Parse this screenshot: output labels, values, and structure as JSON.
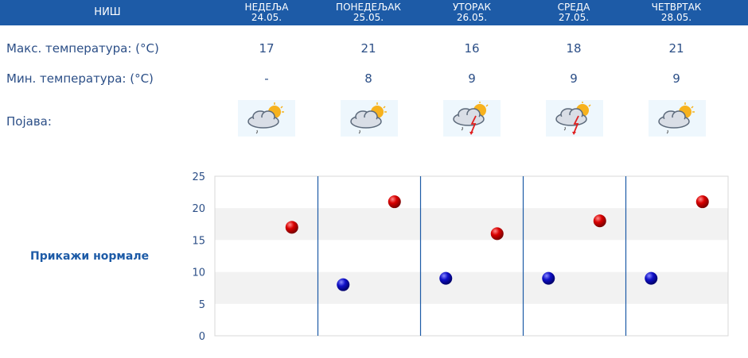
{
  "header": {
    "city": "НИШ",
    "days": [
      {
        "name": "НЕДЕЉА",
        "date": "24.05."
      },
      {
        "name": "ПОНЕДЕЉАК",
        "date": "25.05."
      },
      {
        "name": "УТОРАК",
        "date": "26.05."
      },
      {
        "name": "СРЕДА",
        "date": "27.05."
      },
      {
        "name": "ЧЕТВРТАК",
        "date": "28.05."
      }
    ]
  },
  "rows": {
    "max_label": "Макс. температура: (°C)",
    "min_label": "Мин. температура: (°C)",
    "phenomenon_label": "Појава:",
    "max_values": [
      "17",
      "21",
      "16",
      "18",
      "21"
    ],
    "min_values": [
      "-",
      "8",
      "9",
      "9",
      "9"
    ],
    "icons": [
      "partly-cloudy-light-rain-icon",
      "partly-cloudy-light-rain-icon",
      "thunderstorm-rain-icon",
      "thunderstorm-rain-icon",
      "partly-cloudy-light-rain-icon"
    ]
  },
  "normals_link": "Прикажи нормале",
  "colors": {
    "header_bg": "#1d5ba7",
    "max_marker": "#cc0000",
    "min_marker": "#1010b0",
    "divider": "#1d5ba7",
    "band": "#f2f2f2"
  },
  "chart_data": {
    "type": "scatter",
    "ylim": [
      0,
      25
    ],
    "yticks": [
      "0",
      "5",
      "10",
      "15",
      "20",
      "25"
    ],
    "grid": "alternating horizontal bands",
    "series": [
      {
        "values": [
          17,
          21,
          16,
          18,
          21
        ]
      },
      {
        "values": [
          null,
          8,
          9,
          9,
          9
        ]
      }
    ]
  }
}
